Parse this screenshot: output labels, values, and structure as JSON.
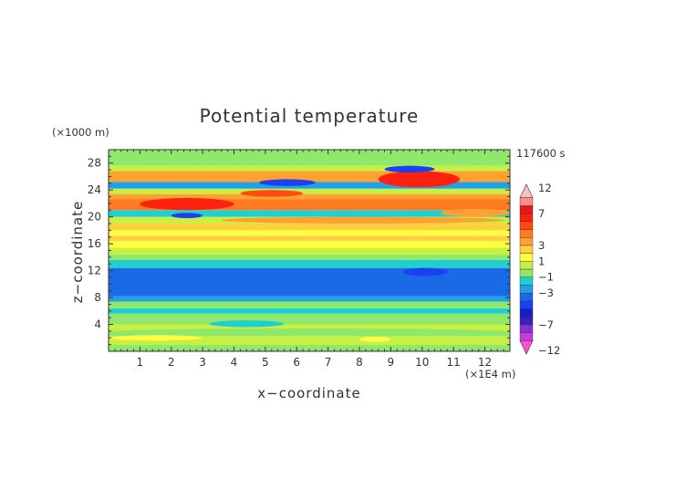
{
  "chart_data": {
    "type": "heatmap",
    "title": "Potential temperature",
    "xlabel": "x−coordinate",
    "ylabel": "z−coordinate",
    "x_unit": "(×1E4 m)",
    "y_unit": "(×1000 m)",
    "time_label": "117600 s",
    "xlim": [
      0,
      12.8
    ],
    "ylim": [
      0,
      30
    ],
    "x_ticks": [
      1,
      2,
      3,
      4,
      5,
      6,
      7,
      8,
      9,
      10,
      11,
      12
    ],
    "x_tick_labels": [
      "1",
      "2",
      "3",
      "4",
      "5",
      "6",
      "7",
      "8",
      "9",
      "10",
      "11",
      "12"
    ],
    "y_ticks": [
      4,
      8,
      12,
      16,
      20,
      24,
      28
    ],
    "y_tick_labels": [
      "4",
      "8",
      "12",
      "16",
      "20",
      "24",
      "28"
    ],
    "colorbar": {
      "boundaries": [
        -12,
        -9,
        -8,
        -7,
        -6,
        -5,
        -4,
        -3,
        -2,
        -1,
        0,
        1,
        2,
        3,
        4,
        5,
        6,
        7,
        8,
        9,
        12
      ],
      "colors": [
        "#ff4fd0",
        "#c13fe0",
        "#8a2fd4",
        "#3a1fb8",
        "#1020d0",
        "#1a40f0",
        "#1a6ae8",
        "#20a0e8",
        "#20d0d0",
        "#90e86a",
        "#c8f040",
        "#ffff40",
        "#ffd040",
        "#ffa030",
        "#ff7a20",
        "#ff4a10",
        "#ff2010",
        "#e81818",
        "#ff8c8c",
        "#ffc0c0"
      ],
      "labels": [
        "12",
        "7",
        "3",
        "1",
        "−1",
        "−3",
        "−7",
        "−12"
      ],
      "label_values": [
        12,
        7,
        3,
        1,
        -1,
        -3,
        -7,
        -12
      ]
    },
    "bands": [
      {
        "z": [
          0,
          1.0
        ],
        "value": -0.5
      },
      {
        "z": [
          1.0,
          2.2
        ],
        "value": 0.5
      },
      {
        "z": [
          2.2,
          3.0
        ],
        "value": -0.5
      },
      {
        "z": [
          3.0,
          4.0
        ],
        "value": 0.5
      },
      {
        "z": [
          4.0,
          5.6
        ],
        "value": -0.5
      },
      {
        "z": [
          5.6,
          6.4
        ],
        "value": -1.5
      },
      {
        "z": [
          6.4,
          7.4
        ],
        "value": -0.5
      },
      {
        "z": [
          7.4,
          8.2
        ],
        "value": -2.5
      },
      {
        "z": [
          8.2,
          12.4
        ],
        "value": -3.5
      },
      {
        "z": [
          12.4,
          13.6
        ],
        "value": -1.5
      },
      {
        "z": [
          13.6,
          14.4
        ],
        "value": -0.5
      },
      {
        "z": [
          14.4,
          15.4
        ],
        "value": 0.5
      },
      {
        "z": [
          15.4,
          16.4
        ],
        "value": 1.5
      },
      {
        "z": [
          16.4,
          17.2
        ],
        "value": 2.5
      },
      {
        "z": [
          17.2,
          18.0
        ],
        "value": 1.5
      },
      {
        "z": [
          18.0,
          19.0
        ],
        "value": 2.5
      },
      {
        "z": [
          19.0,
          20.0
        ],
        "value": 0.5
      },
      {
        "z": [
          20.0,
          21.0
        ],
        "value": -1.5
      },
      {
        "z": [
          21.0,
          22.6
        ],
        "value": 4.5
      },
      {
        "z": [
          22.6,
          23.4
        ],
        "value": 3.5
      },
      {
        "z": [
          23.4,
          24.2
        ],
        "value": 0.5
      },
      {
        "z": [
          24.2,
          25.2
        ],
        "value": -2.5
      },
      {
        "z": [
          25.2,
          26.8
        ],
        "value": 3.5
      },
      {
        "z": [
          26.8,
          27.6
        ],
        "value": 0.5
      },
      {
        "z": [
          27.6,
          30.0
        ],
        "value": -0.5
      }
    ],
    "features": [
      {
        "x": [
          9.0,
          10.8
        ],
        "z": [
          25.0,
          26.6
        ],
        "value": 10
      },
      {
        "x": [
          8.6,
          11.2
        ],
        "z": [
          24.4,
          26.8
        ],
        "value": 6.5
      },
      {
        "x": [
          8.8,
          10.4
        ],
        "z": [
          26.6,
          27.6
        ],
        "value": -4.5
      },
      {
        "x": [
          4.8,
          6.6
        ],
        "z": [
          24.6,
          25.6
        ],
        "value": -4.5
      },
      {
        "x": [
          1.0,
          4.0
        ],
        "z": [
          21.0,
          22.8
        ],
        "value": 6.5
      },
      {
        "x": [
          2.0,
          3.0
        ],
        "z": [
          19.8,
          20.6
        ],
        "value": -4.5
      },
      {
        "x": [
          4.2,
          6.2
        ],
        "z": [
          23.0,
          24.0
        ],
        "value": 5.5
      },
      {
        "x": [
          10.6,
          12.8
        ],
        "z": [
          20.0,
          21.2
        ],
        "value": 3.5
      },
      {
        "x": [
          3.6,
          12.6
        ],
        "z": [
          19.0,
          20.0
        ],
        "value": 3.5
      },
      {
        "x": [
          9.4,
          10.8
        ],
        "z": [
          11.2,
          12.4
        ],
        "value": -4.5
      },
      {
        "x": [
          3.2,
          5.6
        ],
        "z": [
          3.6,
          4.6
        ],
        "value": -1.5
      },
      {
        "x": [
          0,
          12.8
        ],
        "z": [
          2.4,
          3.4
        ],
        "value": -0.5
      },
      {
        "x": [
          8.0,
          9.0
        ],
        "z": [
          1.4,
          2.2
        ],
        "value": 1.5
      },
      {
        "x": [
          0,
          3.0
        ],
        "z": [
          1.6,
          2.4
        ],
        "value": 1.5
      }
    ]
  }
}
